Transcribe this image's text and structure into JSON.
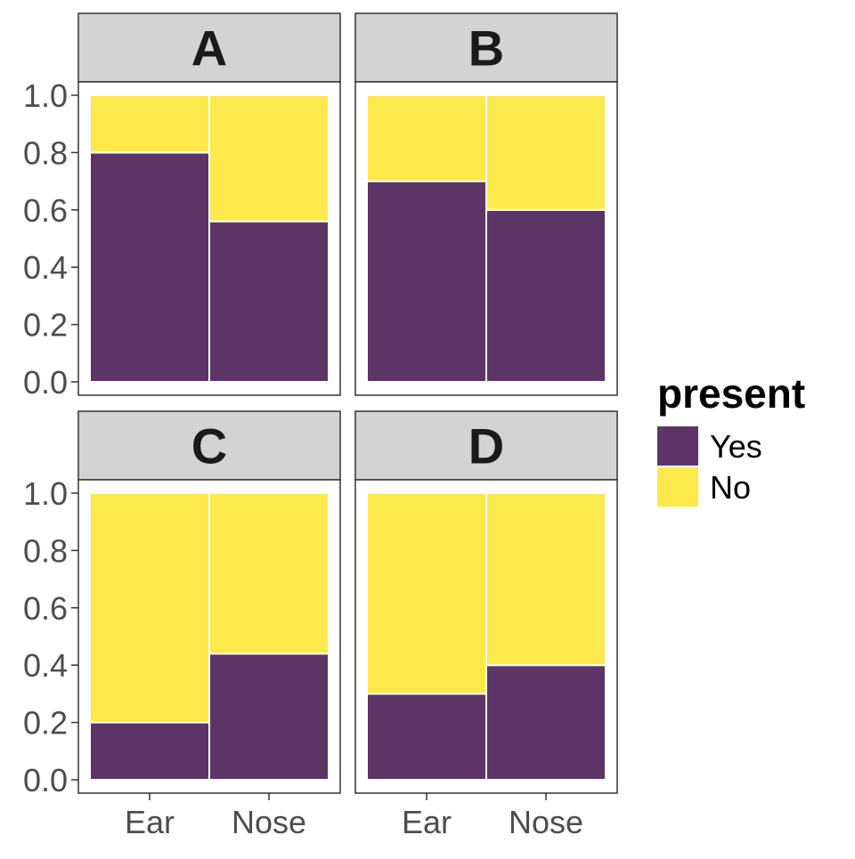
{
  "chart_data": {
    "type": "bar",
    "stacked": true,
    "facets": [
      {
        "label": "A",
        "categories": [
          "Ear",
          "Nose"
        ],
        "series": [
          {
            "name": "Yes",
            "values": [
              0.8,
              0.56
            ]
          },
          {
            "name": "No",
            "values": [
              0.2,
              0.44
            ]
          }
        ]
      },
      {
        "label": "B",
        "categories": [
          "Ear",
          "Nose"
        ],
        "series": [
          {
            "name": "Yes",
            "values": [
              0.7,
              0.6
            ]
          },
          {
            "name": "No",
            "values": [
              0.3,
              0.4
            ]
          }
        ]
      },
      {
        "label": "C",
        "categories": [
          "Ear",
          "Nose"
        ],
        "series": [
          {
            "name": "Yes",
            "values": [
              0.2,
              0.44
            ]
          },
          {
            "name": "No",
            "values": [
              0.8,
              0.56
            ]
          }
        ]
      },
      {
        "label": "D",
        "categories": [
          "Ear",
          "Nose"
        ],
        "series": [
          {
            "name": "Yes",
            "values": [
              0.3,
              0.4
            ]
          },
          {
            "name": "No",
            "values": [
              0.7,
              0.6
            ]
          }
        ]
      }
    ],
    "y_ticks": [
      "0.0",
      "0.2",
      "0.4",
      "0.6",
      "0.8",
      "1.0"
    ],
    "ylim": [
      0,
      1
    ],
    "legend": {
      "title": "present",
      "entries": [
        "Yes",
        "No"
      ],
      "position": "right"
    },
    "colors": {
      "Yes": "#5c3566",
      "No": "#fde94c"
    },
    "grid": false,
    "facet_strip_color": "#d3d3d3"
  }
}
